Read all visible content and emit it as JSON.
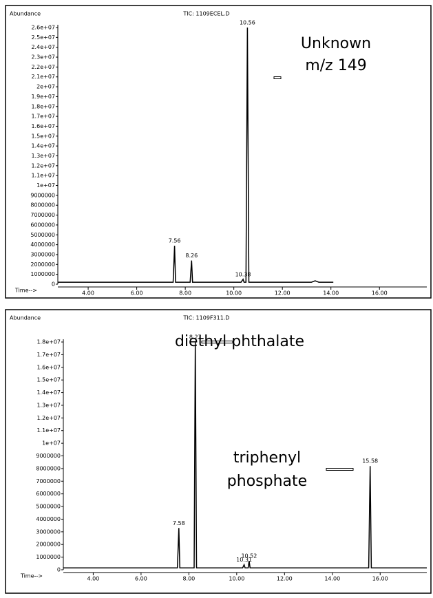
{
  "chart_data": [
    {
      "type": "line",
      "title": "TIC: 1109ECEL.D",
      "y_label": "Abundance",
      "x_label": "Time-->",
      "color": "#000000",
      "xlim": [
        2.75,
        17.95
      ],
      "ylim": [
        0,
        26000000
      ],
      "xticks": [
        {
          "value": 4,
          "label": "4.00"
        },
        {
          "value": 6,
          "label": "6.00"
        },
        {
          "value": 8,
          "label": "8.00"
        },
        {
          "value": 10,
          "label": "10.00"
        },
        {
          "value": 12,
          "label": "12.00"
        },
        {
          "value": 14,
          "label": "14.00"
        },
        {
          "value": 16,
          "label": "16.00"
        }
      ],
      "yticks": [
        0,
        1000000,
        2000000,
        3000000,
        4000000,
        5000000,
        6000000,
        7000000,
        8000000,
        9000000,
        {
          "value": 10000000,
          "label": "1e+07"
        },
        {
          "value": 11000000,
          "label": "1.1e+07"
        },
        {
          "value": 12000000,
          "label": "1.2e+07"
        },
        {
          "value": 13000000,
          "label": "1.3e+07"
        },
        {
          "value": 14000000,
          "label": "1.4e+07"
        },
        {
          "value": 15000000,
          "label": "1.5e+07"
        },
        {
          "value": 16000000,
          "label": "1.6e+07"
        },
        {
          "value": 17000000,
          "label": "1.7e+07"
        },
        {
          "value": 18000000,
          "label": "1.8e+07"
        },
        {
          "value": 19000000,
          "label": "1.9e+07"
        },
        {
          "value": 20000000,
          "label": "2e+07"
        },
        {
          "value": 21000000,
          "label": "2.1e+07"
        },
        {
          "value": 22000000,
          "label": "2.2e+07"
        },
        {
          "value": 23000000,
          "label": "2.3e+07"
        },
        {
          "value": 24000000,
          "label": "2.4e+07"
        },
        {
          "value": 25000000,
          "label": "2.5e+07"
        },
        {
          "value": 26000000,
          "label": "2.6e+07"
        }
      ],
      "x": [
        2.75,
        7.5,
        7.56,
        7.6,
        8.2,
        8.26,
        8.3,
        10.3,
        10.38,
        10.42,
        10.5,
        10.56,
        10.62,
        13.2,
        13.35,
        13.5,
        14.1
      ],
      "values": [
        200000,
        200000,
        3900000,
        200000,
        200000,
        2400000,
        200000,
        200000,
        500000,
        200000,
        200000,
        26000000,
        200000,
        200000,
        350000,
        200000,
        200000
      ],
      "peak_labels": [
        7.56,
        8.26,
        10.38,
        10.56
      ],
      "annotations": [
        "Unknown",
        "m/z 149"
      ]
    },
    {
      "type": "line",
      "title": "TIC: 1109F311.D",
      "y_label": "Abundance",
      "x_label": "Time-->",
      "color": "#000000",
      "xlim": [
        2.75,
        17.95
      ],
      "ylim": [
        0,
        18000000
      ],
      "xticks": [
        {
          "value": 4,
          "label": "4.00"
        },
        {
          "value": 6,
          "label": "6.00"
        },
        {
          "value": 8,
          "label": "8.00"
        },
        {
          "value": 10,
          "label": "10.00"
        },
        {
          "value": 12,
          "label": "12.00"
        },
        {
          "value": 14,
          "label": "14.00"
        },
        {
          "value": 16,
          "label": "16.00"
        }
      ],
      "yticks": [
        0,
        1000000,
        2000000,
        3000000,
        4000000,
        5000000,
        6000000,
        7000000,
        8000000,
        9000000,
        {
          "value": 10000000,
          "label": "1e+07"
        },
        {
          "value": 11000000,
          "label": "1.1e+07"
        },
        {
          "value": 12000000,
          "label": "1.2e+07"
        },
        {
          "value": 13000000,
          "label": "1.3e+07"
        },
        {
          "value": 14000000,
          "label": "1.4e+07"
        },
        {
          "value": 15000000,
          "label": "1.5e+07"
        },
        {
          "value": 16000000,
          "label": "1.6e+07"
        },
        {
          "value": 17000000,
          "label": "1.7e+07"
        },
        {
          "value": 18000000,
          "label": "1.8e+07"
        }
      ],
      "x": [
        2.75,
        7.52,
        7.58,
        7.62,
        8.22,
        8.27,
        8.32,
        10.25,
        10.31,
        10.35,
        10.48,
        10.52,
        10.56,
        15.52,
        15.58,
        15.63,
        17.95
      ],
      "values": [
        150000,
        150000,
        3300000,
        150000,
        150000,
        18000000,
        150000,
        150000,
        400000,
        150000,
        150000,
        700000,
        150000,
        150000,
        8200000,
        150000,
        150000
      ],
      "peak_labels": [
        7.58,
        8.27,
        10.31,
        10.52,
        15.58
      ],
      "annotations": [
        "diethyl phthalate",
        "triphenyl",
        "phosphate"
      ]
    }
  ]
}
